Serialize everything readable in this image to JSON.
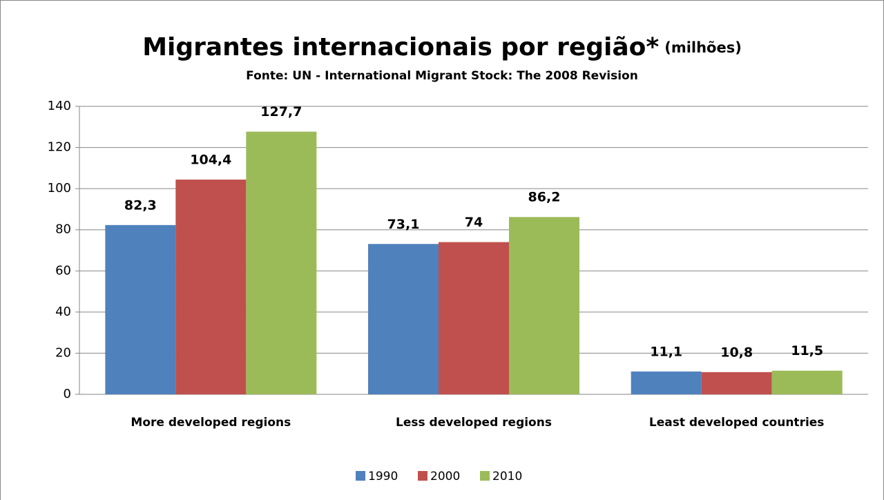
{
  "chart_data": {
    "type": "bar",
    "title": "Migrantes internacionais por região*",
    "title_suffix": "(milhões)",
    "subtitle": "Fonte: UN - International Migrant Stock: The 2008 Revision",
    "categories": [
      "More developed regions",
      "Less developed regions",
      "Least developed countries"
    ],
    "series": [
      {
        "name": "1990",
        "color": "#4f81bd",
        "values": [
          82.3,
          73.1,
          11.1
        ],
        "value_labels": [
          "82,3",
          "73,1",
          "11,1"
        ]
      },
      {
        "name": "2000",
        "color": "#c0504d",
        "values": [
          104.4,
          74,
          10.8
        ],
        "value_labels": [
          "104,4",
          "74",
          "10,8"
        ]
      },
      {
        "name": "2010",
        "color": "#9bbb59",
        "values": [
          127.7,
          86.2,
          11.5
        ],
        "value_labels": [
          "127,7",
          "86,2",
          "11,5"
        ]
      }
    ],
    "ylim": [
      0,
      140
    ],
    "yticks": [
      0,
      20,
      40,
      60,
      80,
      100,
      120,
      140
    ],
    "grid": true,
    "legend": "bottom"
  }
}
